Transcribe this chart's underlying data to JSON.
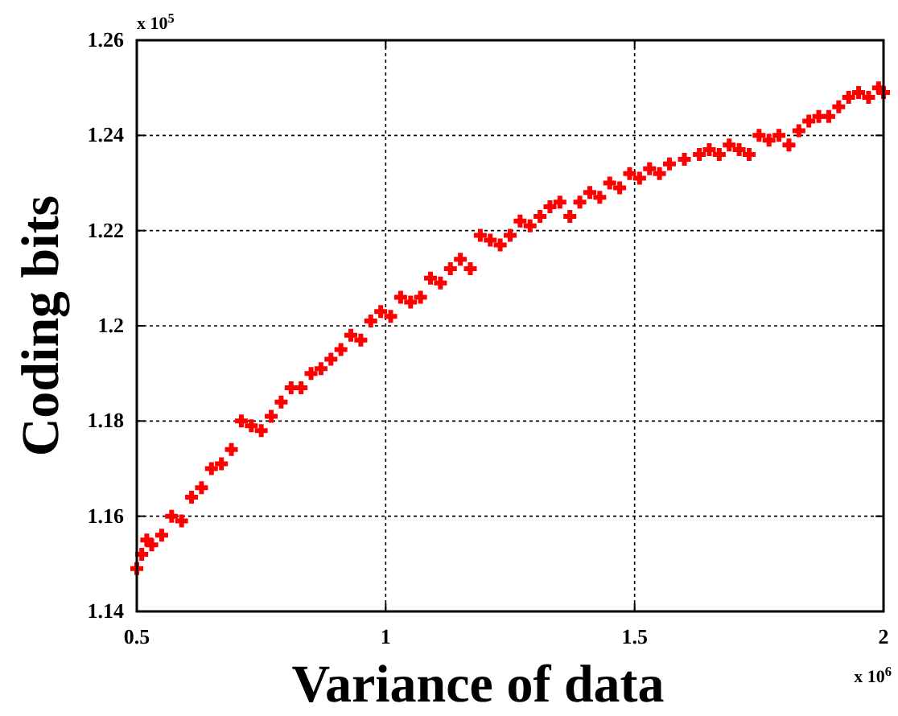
{
  "chart_data": {
    "type": "scatter",
    "xlabel": "Variance of data",
    "ylabel": "Coding bits",
    "annotations": [
      "x 10$^{5}$",
      "x 10$^{6}$"
    ],
    "xlim": [
      0.5,
      2
    ],
    "xticks": [
      0.5,
      1,
      1.5,
      2
    ],
    "ylim": [
      1.14,
      1.26
    ],
    "yticks": [
      1.14,
      1.16,
      1.18,
      1.2,
      1.22,
      1.24,
      1.26
    ],
    "grid": true,
    "marker": "cross",
    "color": "#ff0000",
    "x": [
      0.5,
      0.51,
      0.52,
      0.53,
      0.55,
      0.57,
      0.59,
      0.61,
      0.63,
      0.65,
      0.67,
      0.69,
      0.71,
      0.73,
      0.75,
      0.77,
      0.79,
      0.81,
      0.83,
      0.85,
      0.87,
      0.89,
      0.91,
      0.93,
      0.95,
      0.97,
      0.99,
      1.01,
      1.03,
      1.05,
      1.07,
      1.09,
      1.11,
      1.13,
      1.15,
      1.17,
      1.19,
      1.21,
      1.23,
      1.25,
      1.27,
      1.29,
      1.31,
      1.33,
      1.35,
      1.37,
      1.39,
      1.41,
      1.43,
      1.45,
      1.47,
      1.49,
      1.51,
      1.53,
      1.55,
      1.57,
      1.6,
      1.63,
      1.65,
      1.67,
      1.69,
      1.71,
      1.73,
      1.75,
      1.77,
      1.79,
      1.81,
      1.83,
      1.85,
      1.87,
      1.89,
      1.91,
      1.93,
      1.95,
      1.97,
      1.99,
      2
    ],
    "values": [
      1.149,
      1.152,
      1.155,
      1.154,
      1.156,
      1.16,
      1.159,
      1.164,
      1.166,
      1.17,
      1.171,
      1.174,
      1.18,
      1.179,
      1.178,
      1.181,
      1.184,
      1.187,
      1.187,
      1.19,
      1.191,
      1.193,
      1.195,
      1.198,
      1.197,
      1.201,
      1.203,
      1.202,
      1.206,
      1.205,
      1.206,
      1.21,
      1.209,
      1.212,
      1.214,
      1.212,
      1.219,
      1.218,
      1.217,
      1.219,
      1.222,
      1.221,
      1.223,
      1.225,
      1.226,
      1.223,
      1.226,
      1.228,
      1.227,
      1.23,
      1.229,
      1.232,
      1.231,
      1.233,
      1.232,
      1.234,
      1.235,
      1.236,
      1.237,
      1.236,
      1.238,
      1.237,
      1.236,
      1.24,
      1.239,
      1.24,
      1.238,
      1.241,
      1.243,
      1.244,
      1.244,
      1.246,
      1.248,
      1.249,
      1.248,
      1.25,
      1.249
    ]
  }
}
